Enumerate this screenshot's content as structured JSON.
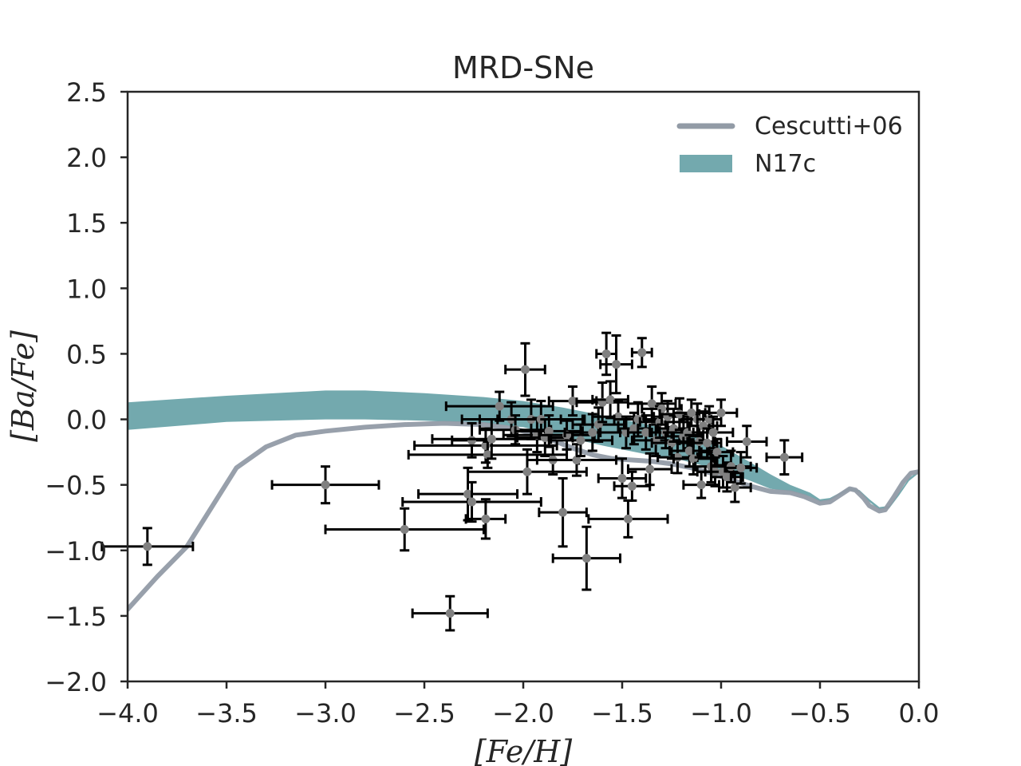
{
  "chart_data": {
    "type": "scatter",
    "title": "MRD-SNe",
    "xlabel": "[Fe/H]",
    "ylabel": "[Ba/Fe]",
    "xlim": [
      -4.0,
      0.0
    ],
    "ylim": [
      -2.0,
      2.5
    ],
    "xticks": [
      -4.0,
      -3.5,
      -3.0,
      -2.5,
      -2.0,
      -1.5,
      -1.0,
      -0.5,
      0.0
    ],
    "xtick_labels": [
      "−4.0",
      "−3.5",
      "−3.0",
      "−2.5",
      "−2.0",
      "−1.5",
      "−1.0",
      "−0.5",
      "0.0"
    ],
    "yticks": [
      -2.0,
      -1.5,
      -1.0,
      -0.5,
      0.0,
      0.5,
      1.0,
      1.5,
      2.0,
      2.5
    ],
    "ytick_labels": [
      "−2.0",
      "−1.5",
      "−1.0",
      "−0.5",
      "0.0",
      "0.5",
      "1.0",
      "1.5",
      "2.0",
      "2.5"
    ],
    "grid": false,
    "legend_position": "top-right",
    "legend": [
      {
        "label": "Cescutti+06",
        "kind": "line",
        "color": "#929ba6"
      },
      {
        "label": "N17c",
        "kind": "band",
        "color": "#73a9ae"
      }
    ],
    "line_series": {
      "name": "Cescutti+06",
      "color": "#929ba6",
      "x": [
        -4.0,
        -3.85,
        -3.7,
        -3.45,
        -3.3,
        -3.15,
        -3.0,
        -2.8,
        -2.6,
        -2.4,
        -2.2,
        -2.05,
        -1.95,
        -1.85,
        -1.75,
        -1.65,
        -1.55,
        -1.45,
        -1.35,
        -1.25,
        -1.15,
        -1.05,
        -0.95,
        -0.85,
        -0.75,
        -0.65,
        -0.58,
        -0.5,
        -0.45,
        -0.4,
        -0.35,
        -0.32,
        -0.28,
        -0.25,
        -0.2,
        -0.17,
        -0.13,
        -0.08,
        -0.04,
        0.0
      ],
      "y": [
        -1.45,
        -1.2,
        -0.97,
        -0.37,
        -0.21,
        -0.12,
        -0.09,
        -0.06,
        -0.04,
        -0.03,
        -0.04,
        -0.07,
        -0.11,
        -0.16,
        -0.22,
        -0.27,
        -0.3,
        -0.31,
        -0.32,
        -0.34,
        -0.37,
        -0.41,
        -0.46,
        -0.51,
        -0.55,
        -0.56,
        -0.59,
        -0.64,
        -0.63,
        -0.58,
        -0.53,
        -0.54,
        -0.6,
        -0.66,
        -0.7,
        -0.69,
        -0.6,
        -0.48,
        -0.41,
        -0.4
      ]
    },
    "band_series": {
      "name": "N17c",
      "color": "#73a9ae",
      "x": [
        -4.0,
        -3.5,
        -3.0,
        -2.8,
        -2.5,
        -2.2,
        -2.0,
        -1.8,
        -1.6,
        -1.4,
        -1.2,
        -1.0,
        -0.85,
        -0.75,
        -0.65,
        -0.55,
        -0.5,
        -0.45,
        -0.4,
        -0.35,
        -0.3,
        -0.25,
        -0.2,
        -0.15,
        -0.1,
        -0.05,
        0.0
      ],
      "lower": [
        -0.08,
        -0.02,
        0.0,
        0.0,
        -0.01,
        -0.03,
        -0.06,
        -0.13,
        -0.2,
        -0.26,
        -0.31,
        -0.39,
        -0.47,
        -0.53,
        -0.55,
        -0.59,
        -0.63,
        -0.62,
        -0.58,
        -0.54,
        -0.56,
        -0.63,
        -0.69,
        -0.68,
        -0.58,
        -0.47,
        -0.41
      ],
      "upper": [
        0.13,
        0.18,
        0.22,
        0.22,
        0.2,
        0.17,
        0.14,
        0.09,
        0.03,
        -0.03,
        -0.1,
        -0.2,
        -0.33,
        -0.42,
        -0.5,
        -0.56,
        -0.61,
        -0.6,
        -0.56,
        -0.52,
        -0.54,
        -0.61,
        -0.67,
        -0.66,
        -0.56,
        -0.45,
        -0.39
      ]
    },
    "points": {
      "name": "observations",
      "color": "#808080",
      "errorbar_color": "#000000",
      "data": [
        {
          "x": -3.9,
          "y": -0.97,
          "xerr": 0.23,
          "yerr": 0.14
        },
        {
          "x": -3.0,
          "y": -0.5,
          "xerr": 0.27,
          "yerr": 0.14
        },
        {
          "x": -2.6,
          "y": -0.84,
          "xerr": 0.4,
          "yerr": 0.16
        },
        {
          "x": -2.37,
          "y": -1.48,
          "xerr": 0.19,
          "yerr": 0.13
        },
        {
          "x": -2.28,
          "y": -0.57,
          "xerr": 0.25,
          "yerr": 0.2
        },
        {
          "x": -2.26,
          "y": -0.63,
          "xerr": 0.35,
          "yerr": 0.15
        },
        {
          "x": -2.26,
          "y": -0.16,
          "xerr": 0.1,
          "yerr": 0.13
        },
        {
          "x": -2.19,
          "y": -0.2,
          "xerr": 0.36,
          "yerr": 0.13
        },
        {
          "x": -2.19,
          "y": -0.76,
          "xerr": 0.1,
          "yerr": 0.15
        },
        {
          "x": -2.18,
          "y": -0.27,
          "xerr": 0.4,
          "yerr": 0.1
        },
        {
          "x": -2.16,
          "y": -0.15,
          "xerr": 0.3,
          "yerr": 0.15
        },
        {
          "x": -2.12,
          "y": 0.1,
          "xerr": 0.27,
          "yerr": 0.11
        },
        {
          "x": -2.06,
          "y": 0.0,
          "xerr": 0.25,
          "yerr": 0.13
        },
        {
          "x": -2.04,
          "y": -0.08,
          "xerr": 0.18,
          "yerr": 0.11
        },
        {
          "x": -1.99,
          "y": 0.38,
          "xerr": 0.1,
          "yerr": 0.2
        },
        {
          "x": -1.98,
          "y": -0.4,
          "xerr": 0.3,
          "yerr": 0.17
        },
        {
          "x": -1.96,
          "y": 0.0,
          "xerr": 0.26,
          "yerr": 0.15
        },
        {
          "x": -1.93,
          "y": -0.12,
          "xerr": 0.17,
          "yerr": 0.13
        },
        {
          "x": -1.91,
          "y": 0.0,
          "xerr": 0.22,
          "yerr": 0.14
        },
        {
          "x": -1.89,
          "y": -0.14,
          "xerr": 0.14,
          "yerr": 0.14
        },
        {
          "x": -1.87,
          "y": -0.09,
          "xerr": 0.17,
          "yerr": 0.12
        },
        {
          "x": -1.85,
          "y": -0.31,
          "xerr": 0.13,
          "yerr": 0.11
        },
        {
          "x": -1.8,
          "y": -0.71,
          "xerr": 0.12,
          "yerr": 0.26
        },
        {
          "x": -1.78,
          "y": -0.12,
          "xerr": 0.14,
          "yerr": 0.11
        },
        {
          "x": -1.75,
          "y": 0.14,
          "xerr": 0.12,
          "yerr": 0.11
        },
        {
          "x": -1.73,
          "y": -0.31,
          "xerr": 0.2,
          "yerr": 0.12
        },
        {
          "x": -1.71,
          "y": -0.16,
          "xerr": 0.16,
          "yerr": 0.12
        },
        {
          "x": -1.68,
          "y": -1.06,
          "xerr": 0.17,
          "yerr": 0.24
        },
        {
          "x": -1.65,
          "y": -0.1,
          "xerr": 0.14,
          "yerr": 0.14
        },
        {
          "x": -1.62,
          "y": -0.04,
          "xerr": 0.13,
          "yerr": 0.13
        },
        {
          "x": -1.6,
          "y": 0.13,
          "xerr": 0.13,
          "yerr": 0.15
        },
        {
          "x": -1.58,
          "y": 0.5,
          "xerr": 0.05,
          "yerr": 0.16
        },
        {
          "x": -1.56,
          "y": 0.15,
          "xerr": 0.09,
          "yerr": 0.14
        },
        {
          "x": -1.53,
          "y": 0.42,
          "xerr": 0.08,
          "yerr": 0.22
        },
        {
          "x": -1.52,
          "y": 0.02,
          "xerr": 0.13,
          "yerr": 0.12
        },
        {
          "x": -1.5,
          "y": -0.45,
          "xerr": 0.12,
          "yerr": 0.15
        },
        {
          "x": -1.48,
          "y": -0.1,
          "xerr": 0.13,
          "yerr": 0.12
        },
        {
          "x": -1.47,
          "y": -0.76,
          "xerr": 0.2,
          "yerr": 0.14
        },
        {
          "x": -1.45,
          "y": -0.51,
          "xerr": 0.09,
          "yerr": 0.11
        },
        {
          "x": -1.44,
          "y": -0.07,
          "xerr": 0.08,
          "yerr": 0.12
        },
        {
          "x": -1.42,
          "y": 0.0,
          "xerr": 0.12,
          "yerr": 0.13
        },
        {
          "x": -1.4,
          "y": 0.51,
          "xerr": 0.05,
          "yerr": 0.11
        },
        {
          "x": -1.38,
          "y": -0.1,
          "xerr": 0.09,
          "yerr": 0.13
        },
        {
          "x": -1.36,
          "y": -0.38,
          "xerr": 0.11,
          "yerr": 0.12
        },
        {
          "x": -1.35,
          "y": 0.12,
          "xerr": 0.12,
          "yerr": 0.13
        },
        {
          "x": -1.33,
          "y": -0.16,
          "xerr": 0.12,
          "yerr": 0.12
        },
        {
          "x": -1.31,
          "y": -0.02,
          "xerr": 0.1,
          "yerr": 0.12
        },
        {
          "x": -1.3,
          "y": 0.08,
          "xerr": 0.1,
          "yerr": 0.12
        },
        {
          "x": -1.28,
          "y": -0.1,
          "xerr": 0.08,
          "yerr": 0.12
        },
        {
          "x": -1.27,
          "y": 0.02,
          "xerr": 0.07,
          "yerr": 0.12
        },
        {
          "x": -1.25,
          "y": -0.18,
          "xerr": 0.1,
          "yerr": 0.12
        },
        {
          "x": -1.24,
          "y": -0.07,
          "xerr": 0.08,
          "yerr": 0.1
        },
        {
          "x": -1.22,
          "y": -0.29,
          "xerr": 0.1,
          "yerr": 0.12
        },
        {
          "x": -1.21,
          "y": 0.04,
          "xerr": 0.1,
          "yerr": 0.12
        },
        {
          "x": -1.19,
          "y": -0.13,
          "xerr": 0.09,
          "yerr": 0.11
        },
        {
          "x": -1.17,
          "y": -0.1,
          "xerr": 0.1,
          "yerr": 0.12
        },
        {
          "x": -1.16,
          "y": -0.24,
          "xerr": 0.1,
          "yerr": 0.12
        },
        {
          "x": -1.15,
          "y": 0.05,
          "xerr": 0.09,
          "yerr": 0.1
        },
        {
          "x": -1.14,
          "y": -0.3,
          "xerr": 0.1,
          "yerr": 0.12
        },
        {
          "x": -1.12,
          "y": 0.0,
          "xerr": 0.07,
          "yerr": 0.12
        },
        {
          "x": -1.11,
          "y": -0.17,
          "xerr": 0.08,
          "yerr": 0.12
        },
        {
          "x": -1.1,
          "y": -0.5,
          "xerr": 0.09,
          "yerr": 0.1
        },
        {
          "x": -1.09,
          "y": -0.05,
          "xerr": 0.07,
          "yerr": 0.11
        },
        {
          "x": -1.07,
          "y": -0.18,
          "xerr": 0.07,
          "yerr": 0.11
        },
        {
          "x": -1.06,
          "y": 0.0,
          "xerr": 0.06,
          "yerr": 0.1
        },
        {
          "x": -1.05,
          "y": -0.36,
          "xerr": 0.08,
          "yerr": 0.12
        },
        {
          "x": -1.04,
          "y": -0.1,
          "xerr": 0.1,
          "yerr": 0.12
        },
        {
          "x": -1.03,
          "y": -0.4,
          "xerr": 0.09,
          "yerr": 0.11
        },
        {
          "x": -1.02,
          "y": -0.25,
          "xerr": 0.08,
          "yerr": 0.1
        },
        {
          "x": -1.0,
          "y": 0.05,
          "xerr": 0.08,
          "yerr": 0.1
        },
        {
          "x": -0.99,
          "y": -0.4,
          "xerr": 0.09,
          "yerr": 0.12
        },
        {
          "x": -0.97,
          "y": -0.44,
          "xerr": 0.08,
          "yerr": 0.11
        },
        {
          "x": -0.95,
          "y": -0.36,
          "xerr": 0.1,
          "yerr": 0.12
        },
        {
          "x": -0.93,
          "y": -0.52,
          "xerr": 0.08,
          "yerr": 0.11
        },
        {
          "x": -0.9,
          "y": -0.37,
          "xerr": 0.08,
          "yerr": 0.12
        },
        {
          "x": -0.87,
          "y": -0.17,
          "xerr": 0.1,
          "yerr": 0.12
        },
        {
          "x": -0.68,
          "y": -0.29,
          "xerr": 0.09,
          "yerr": 0.13
        }
      ]
    }
  }
}
